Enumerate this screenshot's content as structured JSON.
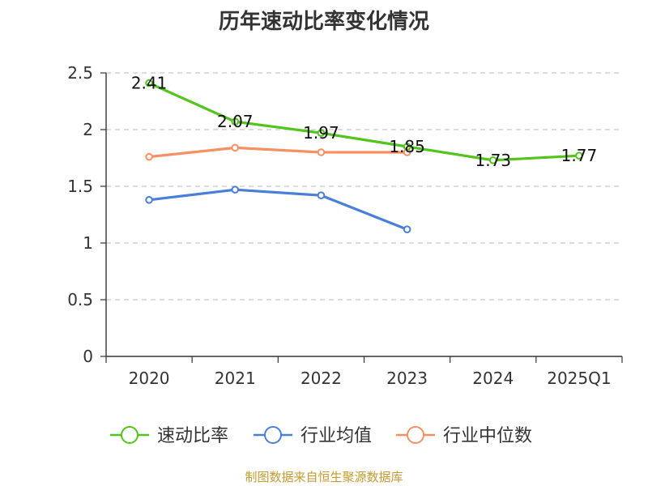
{
  "title": "历年速动比率变化情况",
  "source": "制图数据来自恒生聚源数据库",
  "chart_data": {
    "type": "line",
    "title": "历年速动比率变化情况",
    "categories": [
      "2020",
      "2021",
      "2022",
      "2023",
      "2024",
      "2025Q1"
    ],
    "ylim": [
      0,
      2.5
    ],
    "yticks": [
      "0",
      "0.5",
      "1",
      "1.5",
      "2",
      "2.5"
    ],
    "grid": true,
    "legend_position": "bottom",
    "series": [
      {
        "name": "速动比率",
        "color": "#52c41a",
        "values": [
          2.41,
          2.07,
          1.97,
          1.85,
          1.73,
          1.77
        ],
        "labels": [
          "2.41",
          "2.07",
          "1.97",
          "1.85",
          "1.73",
          "1.77"
        ]
      },
      {
        "name": "行业均值",
        "color": "#4a7fd9",
        "values": [
          1.38,
          1.47,
          1.42,
          1.12,
          null,
          null
        ]
      },
      {
        "name": "行业中位数",
        "color": "#f59062",
        "values": [
          1.76,
          1.84,
          1.8,
          1.8,
          null,
          null
        ]
      }
    ]
  }
}
